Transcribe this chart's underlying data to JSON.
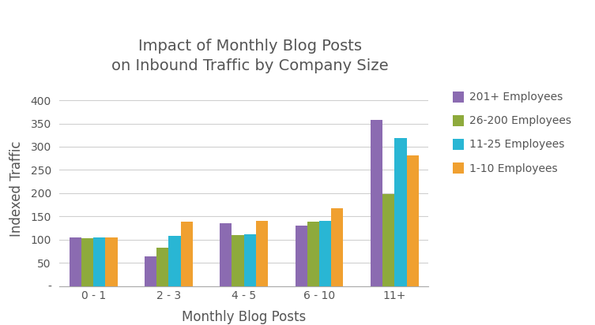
{
  "title": "Impact of Monthly Blog Posts\non Inbound Traffic by Company Size",
  "xlabel": "Monthly Blog Posts",
  "ylabel": "Indexed Traffic",
  "categories": [
    "0 - 1",
    "2 - 3",
    "4 - 5",
    "6 - 10",
    "11+"
  ],
  "series": [
    {
      "label": "201+ Employees",
      "color": "#8B6BB1",
      "values": [
        105,
        63,
        135,
        130,
        358
      ]
    },
    {
      "label": "26-200 Employees",
      "color": "#8EAA3C",
      "values": [
        103,
        82,
        110,
        138,
        198
      ]
    },
    {
      "label": "11-25 Employees",
      "color": "#29B6D4",
      "values": [
        104,
        108,
        111,
        140,
        318
      ]
    },
    {
      "label": "1-10 Employees",
      "color": "#F0A030",
      "values": [
        105,
        138,
        140,
        167,
        282
      ]
    }
  ],
  "ylim": [
    0,
    420
  ],
  "yticks": [
    0,
    50,
    100,
    150,
    200,
    250,
    300,
    350,
    400
  ],
  "ytick_labels": [
    "-",
    "50",
    "100",
    "150",
    "200",
    "250",
    "300",
    "350",
    "400"
  ],
  "title_fontsize": 14,
  "axis_label_fontsize": 12,
  "tick_fontsize": 10,
  "legend_fontsize": 10,
  "background_color": "#ffffff",
  "grid_color": "#d0d0d0",
  "text_color": "#555555"
}
